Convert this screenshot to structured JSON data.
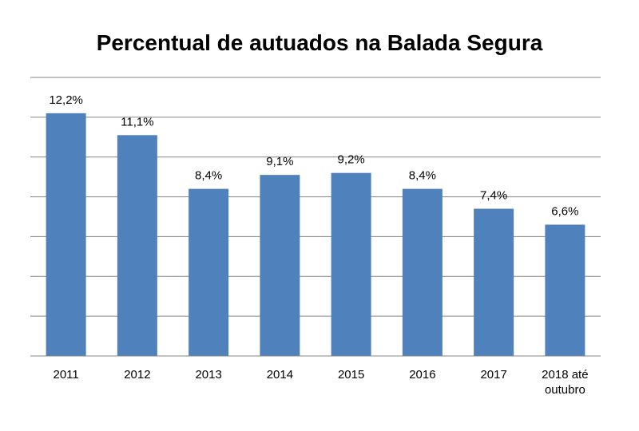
{
  "chart_data": {
    "type": "bar",
    "title": "Percentual de autuados na Balada Segura",
    "categories": [
      [
        "2011"
      ],
      [
        "2012"
      ],
      [
        "2013"
      ],
      [
        "2014"
      ],
      [
        "2015"
      ],
      [
        "2016"
      ],
      [
        "2017"
      ],
      [
        "2018 até",
        "outubro"
      ]
    ],
    "values": [
      12.2,
      11.1,
      8.4,
      9.1,
      9.2,
      8.4,
      7.4,
      6.6
    ],
    "data_labels": [
      "12,2%",
      "11,1%",
      "8,4%",
      "9,1%",
      "9,2%",
      "8,4%",
      "7,4%",
      "6,6%"
    ],
    "ylim": [
      0,
      14
    ],
    "y_gridlines": [
      0,
      2,
      4,
      6,
      8,
      10,
      12,
      14
    ],
    "y_tick_labels_shown": false,
    "grid": true,
    "legend": "none",
    "bar_color": "#4F81BD",
    "grid_color": "#868686"
  }
}
